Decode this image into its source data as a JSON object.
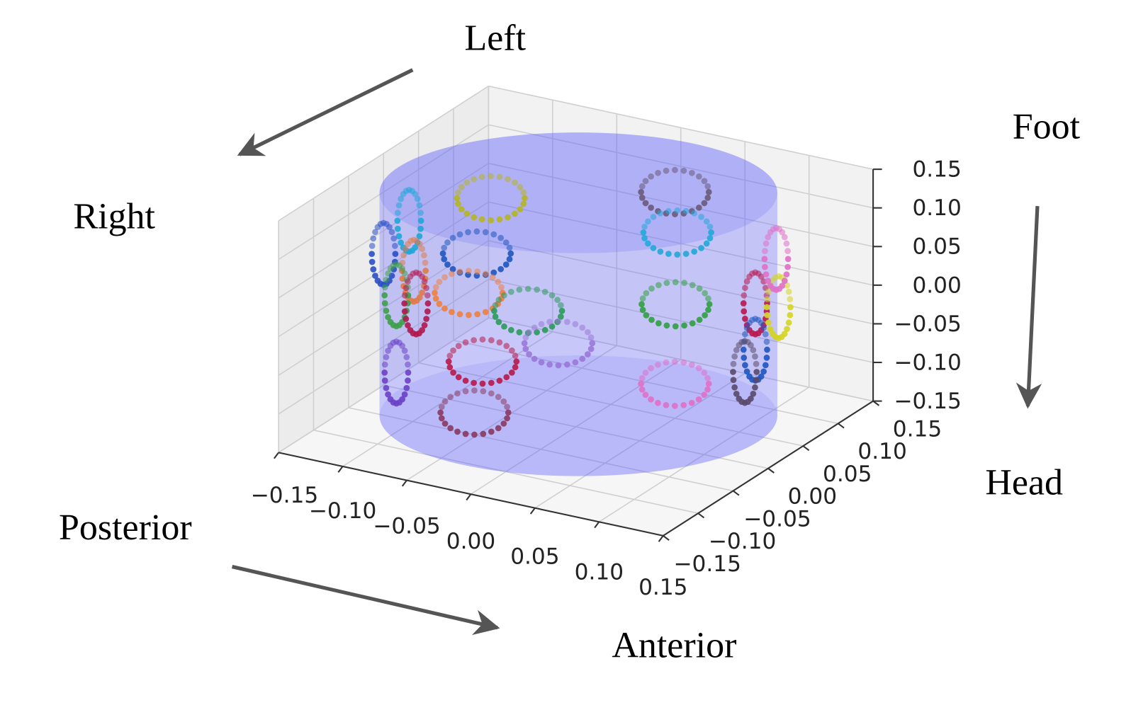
{
  "chart_data": {
    "type": "scatter",
    "projection": "3d",
    "title": "",
    "axes": {
      "x": {
        "label": "",
        "range": [
          -0.15,
          0.15
        ],
        "ticks": [
          "−0.15",
          "−0.10",
          "−0.05",
          "0.00",
          "0.05",
          "0.10",
          "0.15"
        ]
      },
      "y": {
        "label": "",
        "range": [
          -0.15,
          0.15
        ],
        "ticks": [
          "−0.15",
          "−0.10",
          "−0.05",
          "0.00",
          "0.05",
          "0.10",
          "0.15"
        ]
      },
      "z": {
        "label": "",
        "range": [
          -0.15,
          0.15
        ],
        "ticks": [
          "−0.15",
          "−0.10",
          "−0.05",
          "0.00",
          "0.05",
          "0.10",
          "0.15"
        ]
      }
    },
    "tick_values": [
      -0.15,
      -0.1,
      -0.05,
      0.0,
      0.05,
      0.1,
      0.15
    ],
    "grid": true,
    "cylinder": {
      "radius": 0.13,
      "z_range": [
        -0.14,
        0.12
      ],
      "color": "#5a5aff",
      "alpha": 0.3
    },
    "rings": [
      {
        "center": [
          -0.11,
          0.08,
          0.06
        ],
        "facing": "y",
        "color": "#b5b522"
      },
      {
        "center": [
          -0.13,
          0.0,
          0.07
        ],
        "facing": "x",
        "color": "#1fa6d8"
      },
      {
        "center": [
          -0.11,
          0.06,
          0.0
        ],
        "facing": "y",
        "color": "#1f55c0"
      },
      {
        "center": [
          -0.15,
          0.0,
          0.02
        ],
        "facing": "x",
        "color": "#2a4fc8"
      },
      {
        "center": [
          -0.11,
          -0.03,
          0.03
        ],
        "facing": "x",
        "color": "#e07a4a"
      },
      {
        "center": [
          -0.14,
          0.0,
          -0.03
        ],
        "facing": "x",
        "color": "#3ca04a"
      },
      {
        "center": [
          -0.1,
          -0.045,
          0.0
        ],
        "facing": "x",
        "color": "#b01850"
      },
      {
        "center": [
          -0.1,
          0.03,
          -0.03
        ],
        "facing": "y",
        "color": "#f08040"
      },
      {
        "center": [
          -0.07,
          0.06,
          -0.06
        ],
        "facing": "y",
        "color": "#2a9a5a"
      },
      {
        "center": [
          -0.03,
          0.03,
          -0.07
        ],
        "facing": "y",
        "color": "#9a78d8"
      },
      {
        "center": [
          -0.04,
          -0.06,
          -0.045
        ],
        "facing": "y",
        "color": "#b81848"
      },
      {
        "center": [
          -0.14,
          0.0,
          -0.13
        ],
        "facing": "x",
        "color": "#6a40c8"
      },
      {
        "center": [
          -0.03,
          -0.09,
          -0.09
        ],
        "facing": "y",
        "color": "#8a3a62"
      },
      {
        "center": [
          0.02,
          0.105,
          0.1
        ],
        "facing": "y",
        "color": "#6a5a7a"
      },
      {
        "center": [
          0.03,
          0.09,
          0.06
        ],
        "facing": "y",
        "color": "#22a8d8"
      },
      {
        "center": [
          0.045,
          0.06,
          -0.01
        ],
        "facing": "y",
        "color": "#30a040"
      },
      {
        "center": [
          0.11,
          -0.06,
          -0.02
        ],
        "facing": "y",
        "color": "#e070c8"
      },
      {
        "center": [
          0.14,
          0.0,
          0.06
        ],
        "facing": "x",
        "color": "#b81850"
      },
      {
        "center": [
          0.14,
          0.0,
          0.0
        ],
        "facing": "x",
        "color": "#1f55c0"
      },
      {
        "center": [
          0.14,
          -0.015,
          -0.02
        ],
        "facing": "x",
        "color": "#5a4a6a"
      },
      {
        "center": [
          0.15,
          0.015,
          0.05
        ],
        "facing": "x",
        "color": "#d4d422"
      },
      {
        "center": [
          0.14,
          0.03,
          0.1
        ],
        "facing": "x",
        "color": "#e070c8"
      }
    ]
  },
  "annotations": {
    "left": "Left",
    "right": "Right",
    "foot": "Foot",
    "head": "Head",
    "posterior": "Posterior",
    "anterior": "Anterior"
  },
  "colors": {
    "arrow": "#555555",
    "pane": "#f2f2f2",
    "grid": "#cfcfcf"
  }
}
